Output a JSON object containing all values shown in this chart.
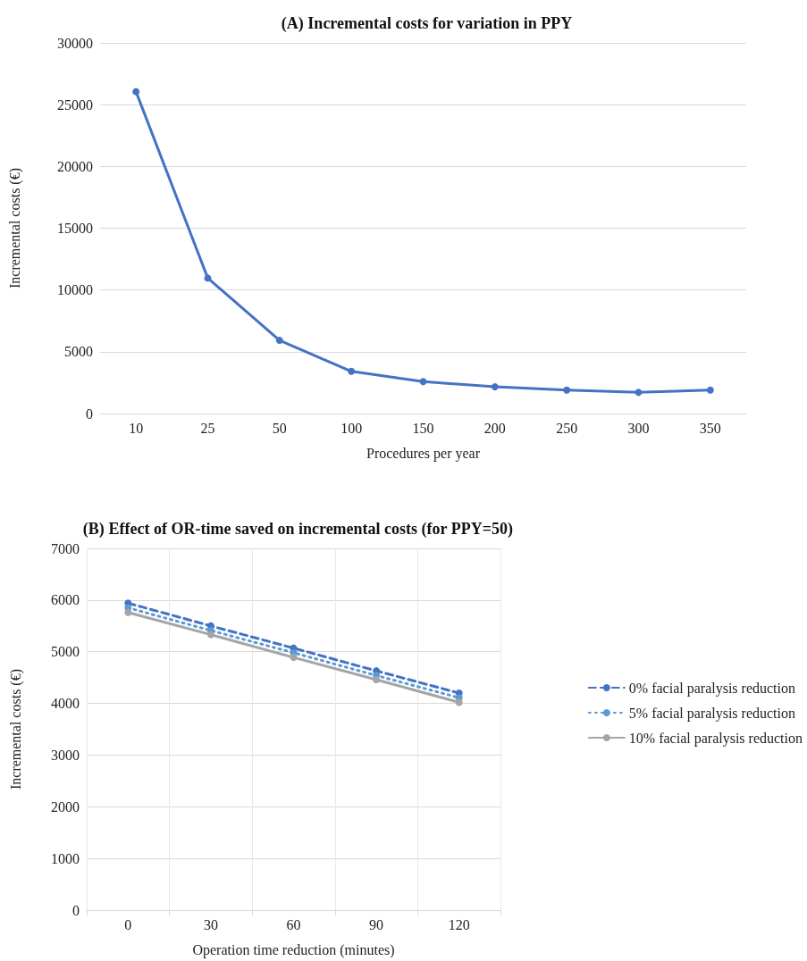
{
  "chart_data": [
    {
      "type": "line",
      "title": "(A) Incremental costs for variation in PPY",
      "xlabel": "Procedures per year",
      "ylabel": "Incremental costs (€)",
      "categories": [
        "10",
        "25",
        "50",
        "100",
        "150",
        "200",
        "250",
        "300",
        "350"
      ],
      "series": [
        {
          "color": "#4472c4",
          "values": [
            26050,
            10960,
            5920,
            3410,
            2580,
            2160,
            1900,
            1710,
            1900
          ]
        }
      ],
      "ylim": [
        0,
        30000
      ],
      "yticks": [
        0,
        5000,
        10000,
        15000,
        20000,
        25000,
        30000
      ],
      "grid": "y",
      "marker": "circle",
      "line_style": "solid",
      "legend": false
    },
    {
      "type": "line",
      "title": "(B) Effect of OR-time saved on incremental costs (for PPY=50)",
      "xlabel": "Operation time reduction (minutes)",
      "ylabel": "Incremental costs (€)",
      "x": [
        0,
        30,
        60,
        90,
        120
      ],
      "series": [
        {
          "name": "0% facial paralysis reduction",
          "color": "#4472c4",
          "line_style": "dashed",
          "values": [
            5940,
            5500,
            5070,
            4630,
            4200
          ]
        },
        {
          "name": "5% facial paralysis reduction",
          "color": "#5b9bd5",
          "line_style": "dotted",
          "values": [
            5850,
            5410,
            4980,
            4540,
            4110
          ]
        },
        {
          "name": "10% facial paralysis reduction",
          "color": "#a5a5a5",
          "line_style": "solid",
          "values": [
            5760,
            5330,
            4890,
            4460,
            4020
          ]
        }
      ],
      "xlim": [
        -15,
        135
      ],
      "xticks": [
        {
          "value": -15,
          "label": null
        },
        0,
        {
          "value": 15,
          "label": null
        },
        30,
        {
          "value": 45,
          "label": null
        },
        60,
        {
          "value": 75,
          "label": null
        },
        90,
        {
          "value": 105,
          "label": null
        },
        120,
        {
          "value": 135,
          "label": null
        }
      ],
      "ylim": [
        0,
        7000
      ],
      "yticks": [
        0,
        1000,
        2000,
        3000,
        4000,
        5000,
        6000,
        7000
      ],
      "grid": true,
      "marker": "circle",
      "legend": "right"
    }
  ]
}
